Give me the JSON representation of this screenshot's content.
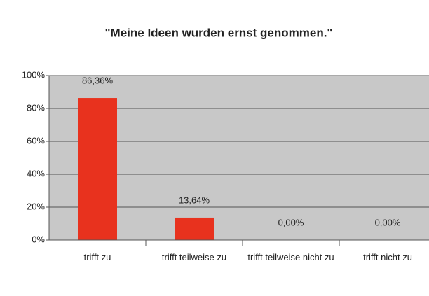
{
  "chart_data": {
    "type": "bar",
    "title": "\"Meine Ideen wurden ernst genommen.\"",
    "categories": [
      "trifft zu",
      "trifft teilweise zu",
      "trifft teilweise nicht zu",
      "trifft nicht zu"
    ],
    "values": [
      86.36,
      13.64,
      0,
      0
    ],
    "value_labels": [
      "86,36%",
      "13,64%",
      "0,00%",
      "0,00%"
    ],
    "color": "#e8321e",
    "ylim": [
      0,
      100
    ],
    "yticks": [
      {
        "value": 0,
        "label": "0%"
      },
      {
        "value": 20,
        "label": "20%"
      },
      {
        "value": 40,
        "label": "40%"
      },
      {
        "value": 60,
        "label": "60%"
      },
      {
        "value": 80,
        "label": "80%"
      },
      {
        "value": 100,
        "label": "100%"
      }
    ],
    "grid": true
  }
}
